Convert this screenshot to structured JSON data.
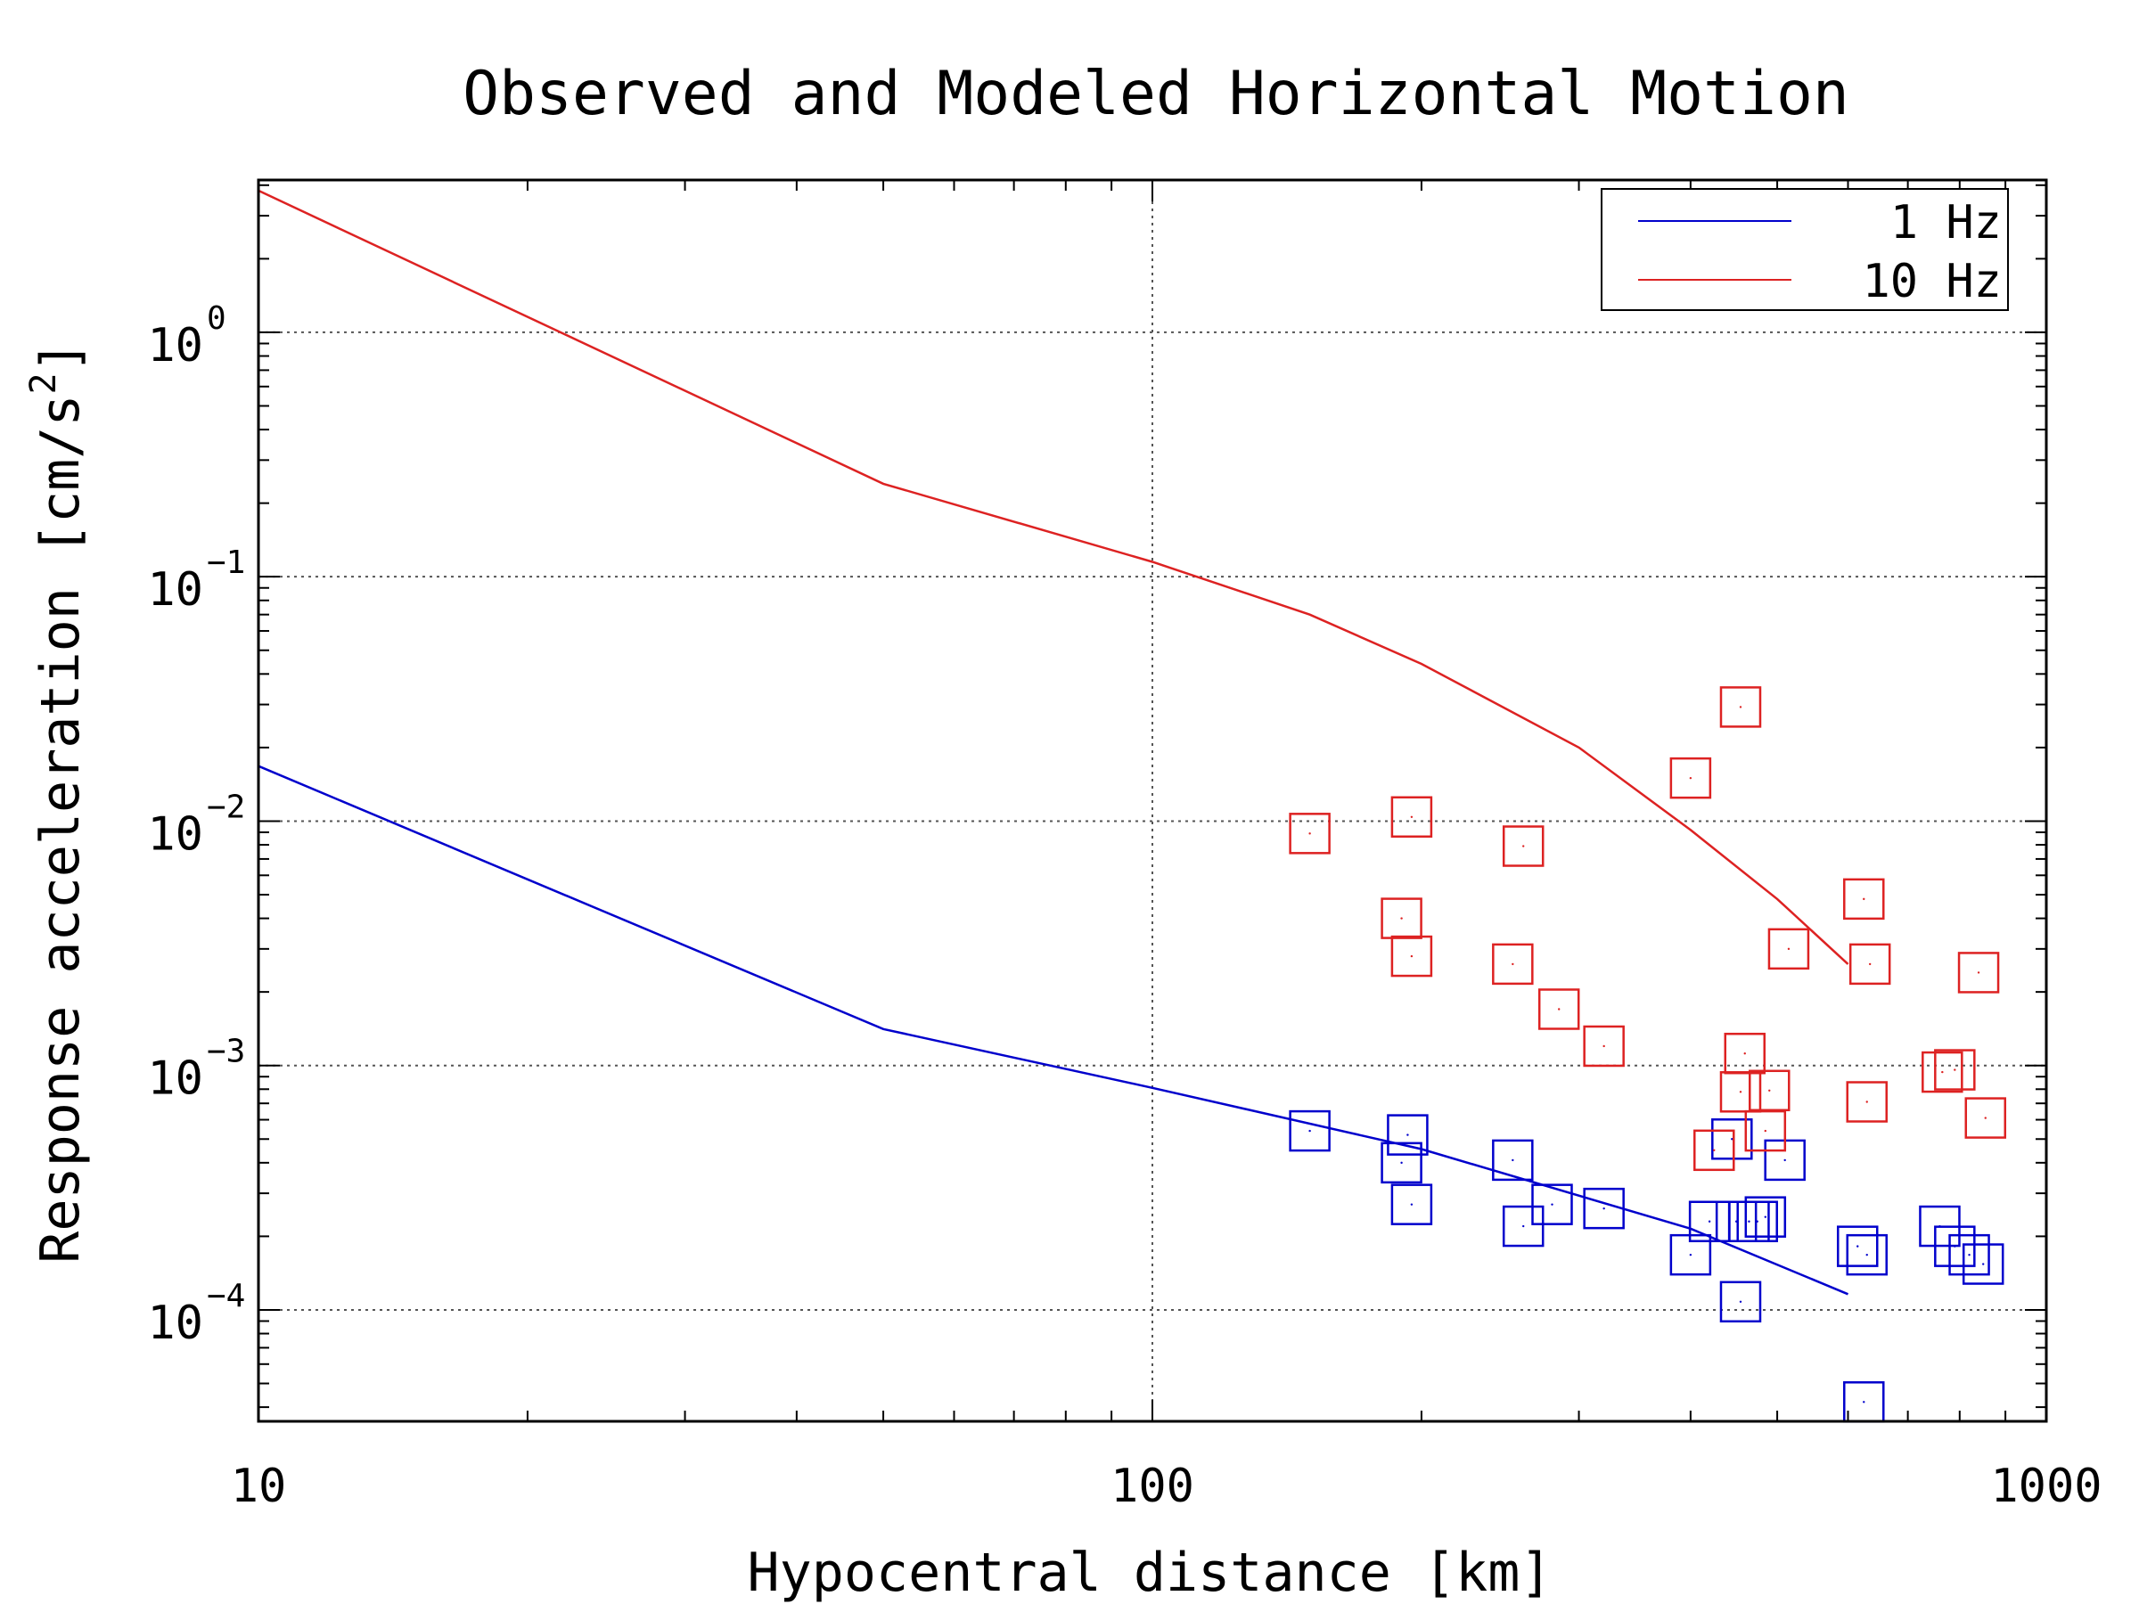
{
  "chart_data": {
    "type": "scatter",
    "title": "Observed and Modeled Horizontal Motion",
    "xlabel": "Hypocentral distance [km]",
    "ylabel_main": "Response acceleration [cm/s",
    "ylabel_sup": "2",
    "ylabel_end": "]",
    "xscale": "log",
    "yscale": "log",
    "xlim": [
      10,
      1000
    ],
    "ylim": [
      3.5e-05,
      4.2
    ],
    "grid": true,
    "legend_position": "top-right",
    "x_ticks": [
      {
        "value": 10,
        "label": "10"
      },
      {
        "value": 100,
        "label": "100"
      },
      {
        "value": 1000,
        "label": "1000"
      }
    ],
    "y_ticks": [
      {
        "value": 1,
        "base": "10",
        "exp": "0"
      },
      {
        "value": 0.1,
        "base": "10",
        "exp": "−1"
      },
      {
        "value": 0.01,
        "base": "10",
        "exp": "−2"
      },
      {
        "value": 0.001,
        "base": "10",
        "exp": "−3"
      },
      {
        "value": 0.0001,
        "base": "10",
        "exp": "−4"
      }
    ],
    "series": [
      {
        "name": "1 Hz",
        "color": "#0000cc",
        "model_line": [
          [
            10,
            0.0168
          ],
          [
            50,
            0.00141
          ],
          [
            100,
            0.00081
          ],
          [
            200,
            0.000455
          ],
          [
            400,
            0.000215
          ],
          [
            600,
            0.000116
          ]
        ],
        "observed": [
          [
            150,
            0.00054
          ],
          [
            190,
            0.0004
          ],
          [
            193,
            0.00052
          ],
          [
            195,
            0.00027
          ],
          [
            253,
            0.00041
          ],
          [
            260,
            0.00022
          ],
          [
            280,
            0.00027
          ],
          [
            320,
            0.00026
          ],
          [
            400,
            0.000168
          ],
          [
            420,
            0.00023
          ],
          [
            445,
            0.0005
          ],
          [
            450,
            0.00023
          ],
          [
            455,
            0.000108
          ],
          [
            465,
            0.00023
          ],
          [
            475,
            0.00023
          ],
          [
            485,
            0.00024
          ],
          [
            510,
            0.00041
          ],
          [
            615,
            0.000182
          ],
          [
            625,
            4.2e-05
          ],
          [
            630,
            0.000168
          ],
          [
            760,
            0.00022
          ],
          [
            790,
            0.000182
          ],
          [
            820,
            0.000168
          ],
          [
            850,
            0.000154
          ]
        ]
      },
      {
        "name": "10 Hz",
        "color": "#dd2222",
        "model_line": [
          [
            10,
            3.8
          ],
          [
            50,
            0.24
          ],
          [
            100,
            0.115
          ],
          [
            150,
            0.07
          ],
          [
            200,
            0.044
          ],
          [
            300,
            0.02
          ],
          [
            400,
            0.0092
          ],
          [
            500,
            0.0048
          ],
          [
            600,
            0.0026
          ]
        ],
        "observed": [
          [
            150,
            0.0089
          ],
          [
            190,
            0.004
          ],
          [
            195,
            0.0104
          ],
          [
            195,
            0.0028
          ],
          [
            253,
            0.0026
          ],
          [
            260,
            0.0079
          ],
          [
            285,
            0.0017
          ],
          [
            320,
            0.0012
          ],
          [
            400,
            0.015
          ],
          [
            425,
            0.00045
          ],
          [
            455,
            0.0293
          ],
          [
            455,
            0.00078
          ],
          [
            460,
            0.00112
          ],
          [
            485,
            0.00054
          ],
          [
            490,
            0.00079
          ],
          [
            515,
            0.003
          ],
          [
            625,
            0.0048
          ],
          [
            630,
            0.00071
          ],
          [
            635,
            0.0026
          ],
          [
            765,
            0.00094
          ],
          [
            790,
            0.00096
          ],
          [
            840,
            0.0024
          ],
          [
            855,
            0.00061
          ]
        ]
      }
    ]
  }
}
